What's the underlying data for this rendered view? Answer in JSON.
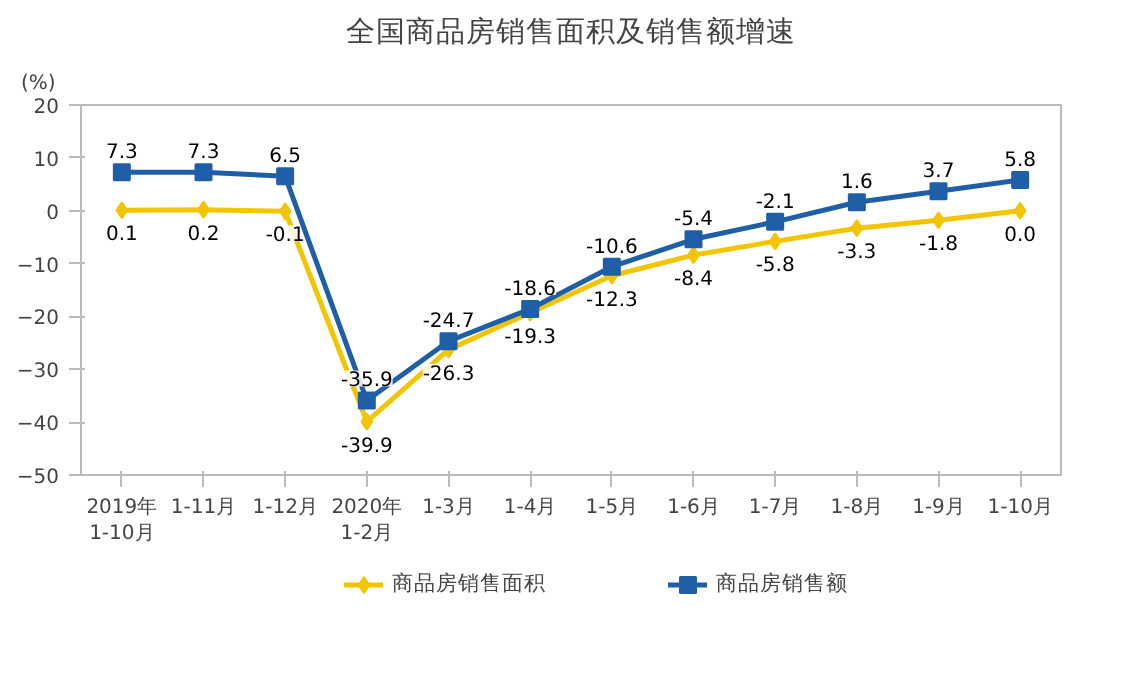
{
  "chart_data": {
    "type": "line",
    "title": "全国商品房销售面积及销售额增速",
    "ylabel": "(%)",
    "categories": [
      "2019年\n1-10月",
      "1-11月",
      "1-12月",
      "2020年\n1-2月",
      "1-3月",
      "1-4月",
      "1-5月",
      "1-6月",
      "1-7月",
      "1-8月",
      "1-9月",
      "1-10月"
    ],
    "series": [
      {
        "name": "商品房销售面积",
        "color": "#f2c500",
        "marker": "diamond",
        "values": [
          0.1,
          0.2,
          -0.1,
          -39.9,
          -26.3,
          -19.3,
          -12.3,
          -8.4,
          -5.8,
          -3.3,
          -1.8,
          0.0
        ],
        "value_labels": [
          "0.1",
          "0.2",
          "-0.1",
          "-39.9",
          "-26.3",
          "-19.3",
          "-12.3",
          "-8.4",
          "-5.8",
          "-3.3",
          "-1.8",
          "0.0"
        ]
      },
      {
        "name": "商品房销售额",
        "color": "#1f5fa8",
        "marker": "square",
        "values": [
          7.3,
          7.3,
          6.5,
          -35.9,
          -24.7,
          -18.6,
          -10.6,
          -5.4,
          -2.1,
          1.6,
          3.7,
          5.8
        ],
        "value_labels": [
          "7.3",
          "7.3",
          "6.5",
          "-35.9",
          "-24.7",
          "-18.6",
          "-10.6",
          "-5.4",
          "-2.1",
          "1.6",
          "3.7",
          "5.8"
        ]
      }
    ],
    "ylim": [
      -50,
      20
    ],
    "yticks": [
      -50,
      -40,
      -30,
      -20,
      -10,
      0,
      10,
      20
    ],
    "grid": false,
    "legend": "bottom",
    "line_style": "solid"
  }
}
